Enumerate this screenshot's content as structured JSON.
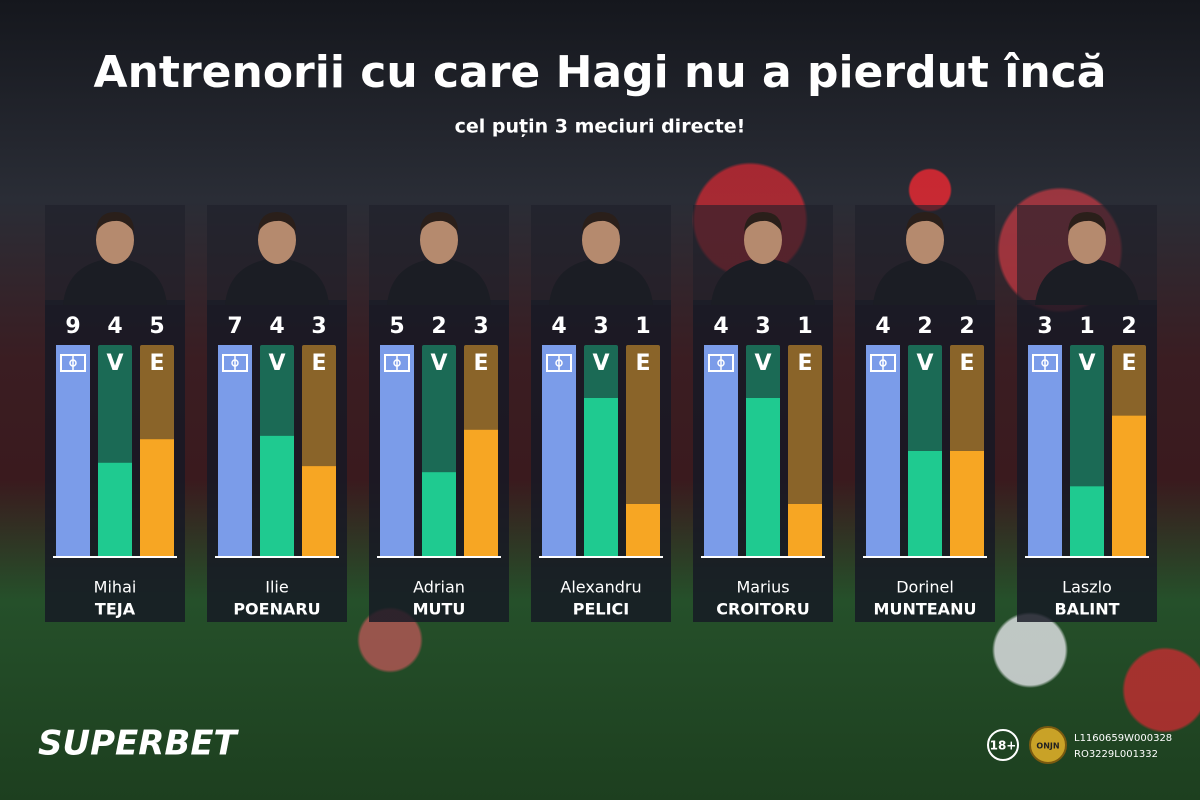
{
  "title": "Antrenorii cu care Hagi nu a pierdut încă",
  "subtitle": "cel puțin 3 meciuri directe!",
  "chart_data": [
    {
      "type": "bar",
      "first_name": "Mihai",
      "last_name": "TEJA",
      "categories": [
        null,
        "V",
        "E"
      ],
      "values": [
        9,
        4,
        5
      ],
      "colors": [
        "#7b9ce9",
        "#1fca90",
        "#f7a623"
      ]
    },
    {
      "type": "bar",
      "first_name": "Ilie",
      "last_name": "POENARU",
      "categories": [
        null,
        "V",
        "E"
      ],
      "values": [
        7,
        4,
        3
      ],
      "colors": [
        "#7b9ce9",
        "#1fca90",
        "#f7a623"
      ]
    },
    {
      "type": "bar",
      "first_name": "Adrian",
      "last_name": "MUTU",
      "categories": [
        null,
        "V",
        "E"
      ],
      "values": [
        5,
        2,
        3
      ],
      "colors": [
        "#7b9ce9",
        "#1fca90",
        "#f7a623"
      ]
    },
    {
      "type": "bar",
      "first_name": "Alexandru",
      "last_name": "PELICI",
      "categories": [
        null,
        "V",
        "E"
      ],
      "values": [
        4,
        3,
        1
      ],
      "colors": [
        "#7b9ce9",
        "#1fca90",
        "#f7a623"
      ]
    },
    {
      "type": "bar",
      "first_name": "Marius",
      "last_name": "CROITORU",
      "categories": [
        null,
        "V",
        "E"
      ],
      "values": [
        4,
        3,
        1
      ],
      "colors": [
        "#7b9ce9",
        "#1fca90",
        "#f7a623"
      ]
    },
    {
      "type": "bar",
      "first_name": "Dorinel",
      "last_name": "MUNTEANU",
      "categories": [
        null,
        "V",
        "E"
      ],
      "values": [
        4,
        2,
        2
      ],
      "colors": [
        "#7b9ce9",
        "#1fca90",
        "#f7a623"
      ]
    },
    {
      "type": "bar",
      "first_name": "Laszlo",
      "last_name": "BALINT",
      "categories": [
        null,
        "V",
        "E"
      ],
      "values": [
        3,
        1,
        2
      ],
      "colors": [
        "#7b9ce9",
        "#1fca90",
        "#f7a623"
      ]
    }
  ],
  "footer": {
    "brand": "SUPERBET",
    "age": "18+",
    "badge": "ONJN",
    "license": [
      "L1160659W000328",
      "RO3229L001332"
    ]
  }
}
